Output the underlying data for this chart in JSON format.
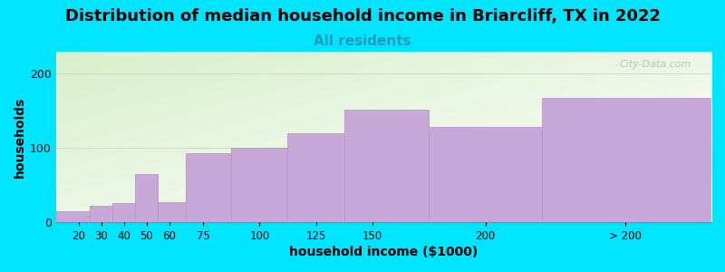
{
  "categories": [
    "20",
    "30",
    "40",
    "50",
    "60",
    "75",
    "100",
    "125",
    "150",
    "200",
    "> 200"
  ],
  "bin_edges": [
    10,
    25,
    35,
    45,
    55,
    67.5,
    87.5,
    112.5,
    137.5,
    175,
    225,
    300
  ],
  "values": [
    15,
    22,
    25,
    65,
    27,
    93,
    100,
    120,
    152,
    128,
    168
  ],
  "bar_color": "#c8a8d8",
  "bar_edge_color": "#b898c8",
  "title": "Distribution of median household income in Briarcliff, TX in 2022",
  "subtitle": "All residents",
  "xlabel": "household income ($1000)",
  "ylabel": "households",
  "ylim": [
    0,
    230
  ],
  "yticks": [
    0,
    100,
    200
  ],
  "xtick_labels": [
    "20",
    "30",
    "40",
    "50",
    "60",
    "75",
    "100",
    "125",
    "150",
    "200",
    "> 200"
  ],
  "xtick_positions": [
    20,
    30,
    40,
    50,
    60,
    75,
    100,
    125,
    150,
    200,
    262
  ],
  "background_outer": "#00e5ff",
  "background_plot_top_left": "#d8f0c8",
  "background_plot_bottom_right": "#ffffff",
  "title_fontsize": 13,
  "subtitle_fontsize": 11,
  "subtitle_color": "#2299bb",
  "axis_label_fontsize": 10,
  "watermark_text": "City-Data.com",
  "watermark_color": "#b8b8b8"
}
